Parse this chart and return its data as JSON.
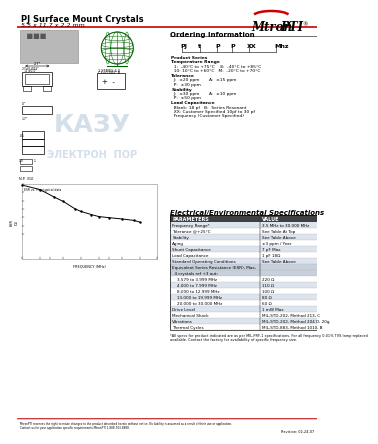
{
  "title": "PJ Surface Mount Crystals",
  "subtitle": "5.5 x 11.7 x 2.2 mm",
  "bg_color": "#ffffff",
  "logo_text_mtron": "Mtron",
  "logo_text_pti": "PTI",
  "logo_arc_color": "#cc0000",
  "header_line_color": "#cc0000",
  "section1_title": "Ordering Information",
  "ordering_labels": [
    "PJ",
    "t",
    "P",
    "P",
    "XX",
    "Mhz"
  ],
  "ordering_rows": [
    [
      "Product Series",
      true
    ],
    [
      "Temperature Range",
      true
    ],
    [
      "  1:  -40°C to +75°C    8:  -40°C to +85°C",
      false
    ],
    [
      "  10: 10°C to +60°C   M:  -20°C to +70°C",
      false
    ],
    [
      "Tolerance",
      true
    ],
    [
      "  J:  ±20 ppm       A:  ±15 ppm",
      false
    ],
    [
      "  P:  ±30 ppm",
      false
    ],
    [
      "Stability",
      true
    ],
    [
      "  J:  ±30 ppm       A:  ±10 ppm",
      false
    ],
    [
      "  P:  ±50 ppm",
      false
    ],
    [
      "Load Capacitance",
      true
    ],
    [
      "  Blank: 18 pf   B:  Series Resonant",
      false
    ],
    [
      "  XX: Customer Specified 10pf to 30 pf",
      false
    ],
    [
      "  Frequency (Customer Specified)",
      false
    ]
  ],
  "section2_title": "Electrical/Environmental Specifications",
  "table_headers": [
    "PARAMETERS",
    "VALUE"
  ],
  "table_row_colors": [
    "#c8d0dc",
    "#ffffff",
    "#c8d0dc",
    "#ffffff",
    "#c8d0dc",
    "#ffffff",
    "#c8d0dc",
    "#c8d0dc",
    "#c8d0dc",
    "#ffffff",
    "#ffffff",
    "#ffffff",
    "#ffffff",
    "#ffffff",
    "#c8d0dc",
    "#ffffff",
    "#ffffff",
    "#ffffff"
  ],
  "table_rows": [
    [
      "Frequency Range*",
      "3.5 MHz to 30.000 MHz"
    ],
    [
      "Tolerance @+25°C",
      "See Table At Top"
    ],
    [
      "Stability",
      "See Table Above"
    ],
    [
      "Aging",
      "±3 ppm / Year"
    ],
    [
      "Shunt Capacitance",
      "7 pF Max"
    ],
    [
      "Load Capacitance",
      "1 pF 18Ω"
    ],
    [
      "Standard Operating Conditions",
      "See Table Above"
    ],
    [
      "Equivalent Series Resistance (ESR), Max,",
      ""
    ],
    [
      "  4 crystals ref +3 out:",
      ""
    ],
    [
      "    3.579 to 3.999 MHz",
      "220 Ω"
    ],
    [
      "    4.000 to 7.999 MHz",
      "110 Ω"
    ],
    [
      "    8.000 to 12.999 MHz",
      "100 Ω"
    ],
    [
      "    13.000 to 19.999 MHz",
      "80 Ω"
    ],
    [
      "    20.000 to 30.000 MHz",
      "60 Ω"
    ],
    [
      "Drive Level",
      "1 mW Max"
    ],
    [
      "Mechanical Shock",
      "MIL-STD-202, Method 213, C"
    ],
    [
      "Vibrations",
      "MIL-STD-202, Method 204 D, 20g"
    ],
    [
      "Thermal Cycles",
      "MIL-STD-883, Method 1010, B"
    ]
  ],
  "footer_note1": "*All specs for product indicated are as per MIL-PRF-1 specifications. For all frequency 0.01% TVS lamp replaced",
  "footer_note2": "available. Contact the factory for availability of specific frequency size.",
  "footer_line2": "Contact us for your application specific requirements MtronPTI 1-888-763-8888.",
  "revision": "Revision: 02-24-07",
  "watermark_text": "КАЗУ",
  "watermark_text2": "ЭЛЕКТРОН  ПОР",
  "watermark_color": "#a0b8d0"
}
